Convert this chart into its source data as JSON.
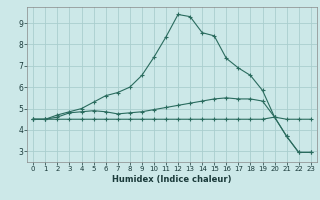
{
  "xlabel": "Humidex (Indice chaleur)",
  "background_color": "#cce8e8",
  "grid_color": "#aacece",
  "line_color": "#2a6b5e",
  "xlim": [
    -0.5,
    23.5
  ],
  "ylim": [
    2.5,
    9.75
  ],
  "xticks": [
    0,
    1,
    2,
    3,
    4,
    5,
    6,
    7,
    8,
    9,
    10,
    11,
    12,
    13,
    14,
    15,
    16,
    17,
    18,
    19,
    20,
    21,
    22,
    23
  ],
  "yticks": [
    3,
    4,
    5,
    6,
    7,
    8,
    9
  ],
  "line1_x": [
    0,
    1,
    2,
    3,
    4,
    5,
    6,
    7,
    8,
    9,
    10,
    11,
    12,
    13,
    14,
    15,
    16,
    17,
    18,
    19,
    20,
    21,
    22,
    23
  ],
  "line1_y": [
    4.5,
    4.5,
    4.7,
    4.85,
    5.0,
    5.3,
    5.6,
    5.75,
    6.0,
    6.55,
    7.4,
    8.35,
    9.4,
    9.3,
    8.55,
    8.4,
    7.35,
    6.9,
    6.55,
    5.85,
    4.6,
    3.7,
    2.95,
    2.95
  ],
  "line2_x": [
    0,
    1,
    2,
    3,
    4,
    5,
    6,
    7,
    8,
    9,
    10,
    11,
    12,
    13,
    14,
    15,
    16,
    17,
    18,
    19,
    20,
    21,
    22,
    23
  ],
  "line2_y": [
    4.5,
    4.5,
    4.6,
    4.8,
    4.85,
    4.9,
    4.85,
    4.75,
    4.8,
    4.85,
    4.95,
    5.05,
    5.15,
    5.25,
    5.35,
    5.45,
    5.5,
    5.45,
    5.45,
    5.35,
    4.6,
    4.5,
    4.5,
    4.5
  ],
  "line3_x": [
    0,
    1,
    2,
    3,
    4,
    5,
    6,
    7,
    8,
    9,
    10,
    11,
    12,
    13,
    14,
    15,
    16,
    17,
    18,
    19,
    20,
    21,
    22,
    23
  ],
  "line3_y": [
    4.5,
    4.5,
    4.5,
    4.5,
    4.5,
    4.5,
    4.5,
    4.5,
    4.5,
    4.5,
    4.5,
    4.5,
    4.5,
    4.5,
    4.5,
    4.5,
    4.5,
    4.5,
    4.5,
    4.5,
    4.6,
    3.7,
    2.95,
    2.95
  ]
}
